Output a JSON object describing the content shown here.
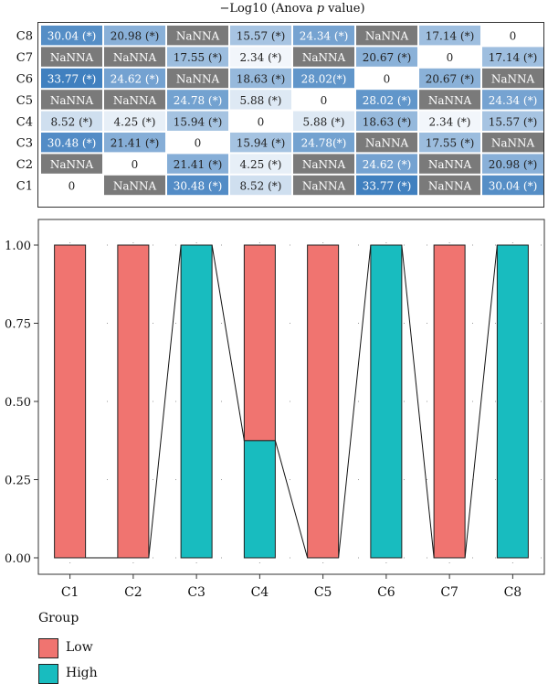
{
  "chart_data": [
    {
      "type": "heatmap",
      "title": "−Log10 (Anova p value)",
      "title_parts": [
        "−Log10 (Anova ",
        "p",
        " value)"
      ],
      "rows": [
        "C8",
        "C7",
        "C6",
        "C5",
        "C4",
        "C3",
        "C2",
        "C1"
      ],
      "cells": [
        [
          "30.04 (*)",
          "20.98 (*)",
          "NaNNA",
          "15.57 (*)",
          "24.34 (*)",
          "NaNNA",
          "17.14 (*)",
          "0"
        ],
        [
          "NaNNA",
          "NaNNA",
          "17.55 (*)",
          "2.34 (*)",
          "NaNNA",
          "20.67 (*)",
          "0",
          "17.14 (*)"
        ],
        [
          "33.77 (*)",
          "24.62 (*)",
          "NaNNA",
          "18.63 (*)",
          "28.02(*)",
          "0",
          "20.67 (*)",
          "NaNNA"
        ],
        [
          "NaNNA",
          "NaNNA",
          "24.78 (*)",
          "5.88 (*)",
          "0",
          "28.02 (*)",
          "NaNNA",
          "24.34 (*)"
        ],
        [
          "8.52 (*)",
          "4.25 (*)",
          "15.94 (*)",
          "0",
          "5.88 (*)",
          "18.63 (*)",
          "2.34 (*)",
          "15.57 (*)"
        ],
        [
          "30.48 (*)",
          "21.41 (*)",
          "0",
          "15.94 (*)",
          "24.78(*)",
          "NaNNA",
          "17.55 (*)",
          "NaNNA"
        ],
        [
          "NaNNA",
          "0",
          "21.41 (*)",
          "4.25 (*)",
          "NaNNA",
          "24.62 (*)",
          "NaNNA",
          "20.98 (*)"
        ],
        [
          "0",
          "NaNNA",
          "30.48 (*)",
          "8.52 (*)",
          "NaNNA",
          "33.77 (*)",
          "NaNNA",
          "30.04 (*)"
        ]
      ],
      "na_color": "#7a7a7a",
      "scale_colors": [
        "#ffffff",
        "#3f7fbf"
      ],
      "scale_max": 34
    },
    {
      "type": "bar",
      "stacked": true,
      "categories": [
        "C1",
        "C2",
        "C3",
        "C4",
        "C5",
        "C6",
        "C7",
        "C8"
      ],
      "series": [
        {
          "name": "High",
          "values": [
            0,
            0,
            1.0,
            0.375,
            0,
            1.0,
            0,
            1.0
          ]
        },
        {
          "name": "Low",
          "values": [
            1.0,
            1.0,
            0,
            0.625,
            1.0,
            0,
            1.0,
            0
          ]
        }
      ],
      "ylim": [
        0,
        1
      ],
      "yticks": [
        "0.00",
        "0.25",
        "0.50",
        "0.75",
        "1.00"
      ],
      "colors": {
        "Low": "#f07470",
        "High": "#18bcbf"
      },
      "grid": "dotted"
    }
  ],
  "legend": {
    "title": "Group",
    "items": [
      {
        "label": "Low",
        "color": "#f07470"
      },
      {
        "label": "High",
        "color": "#18bcbf"
      }
    ]
  }
}
